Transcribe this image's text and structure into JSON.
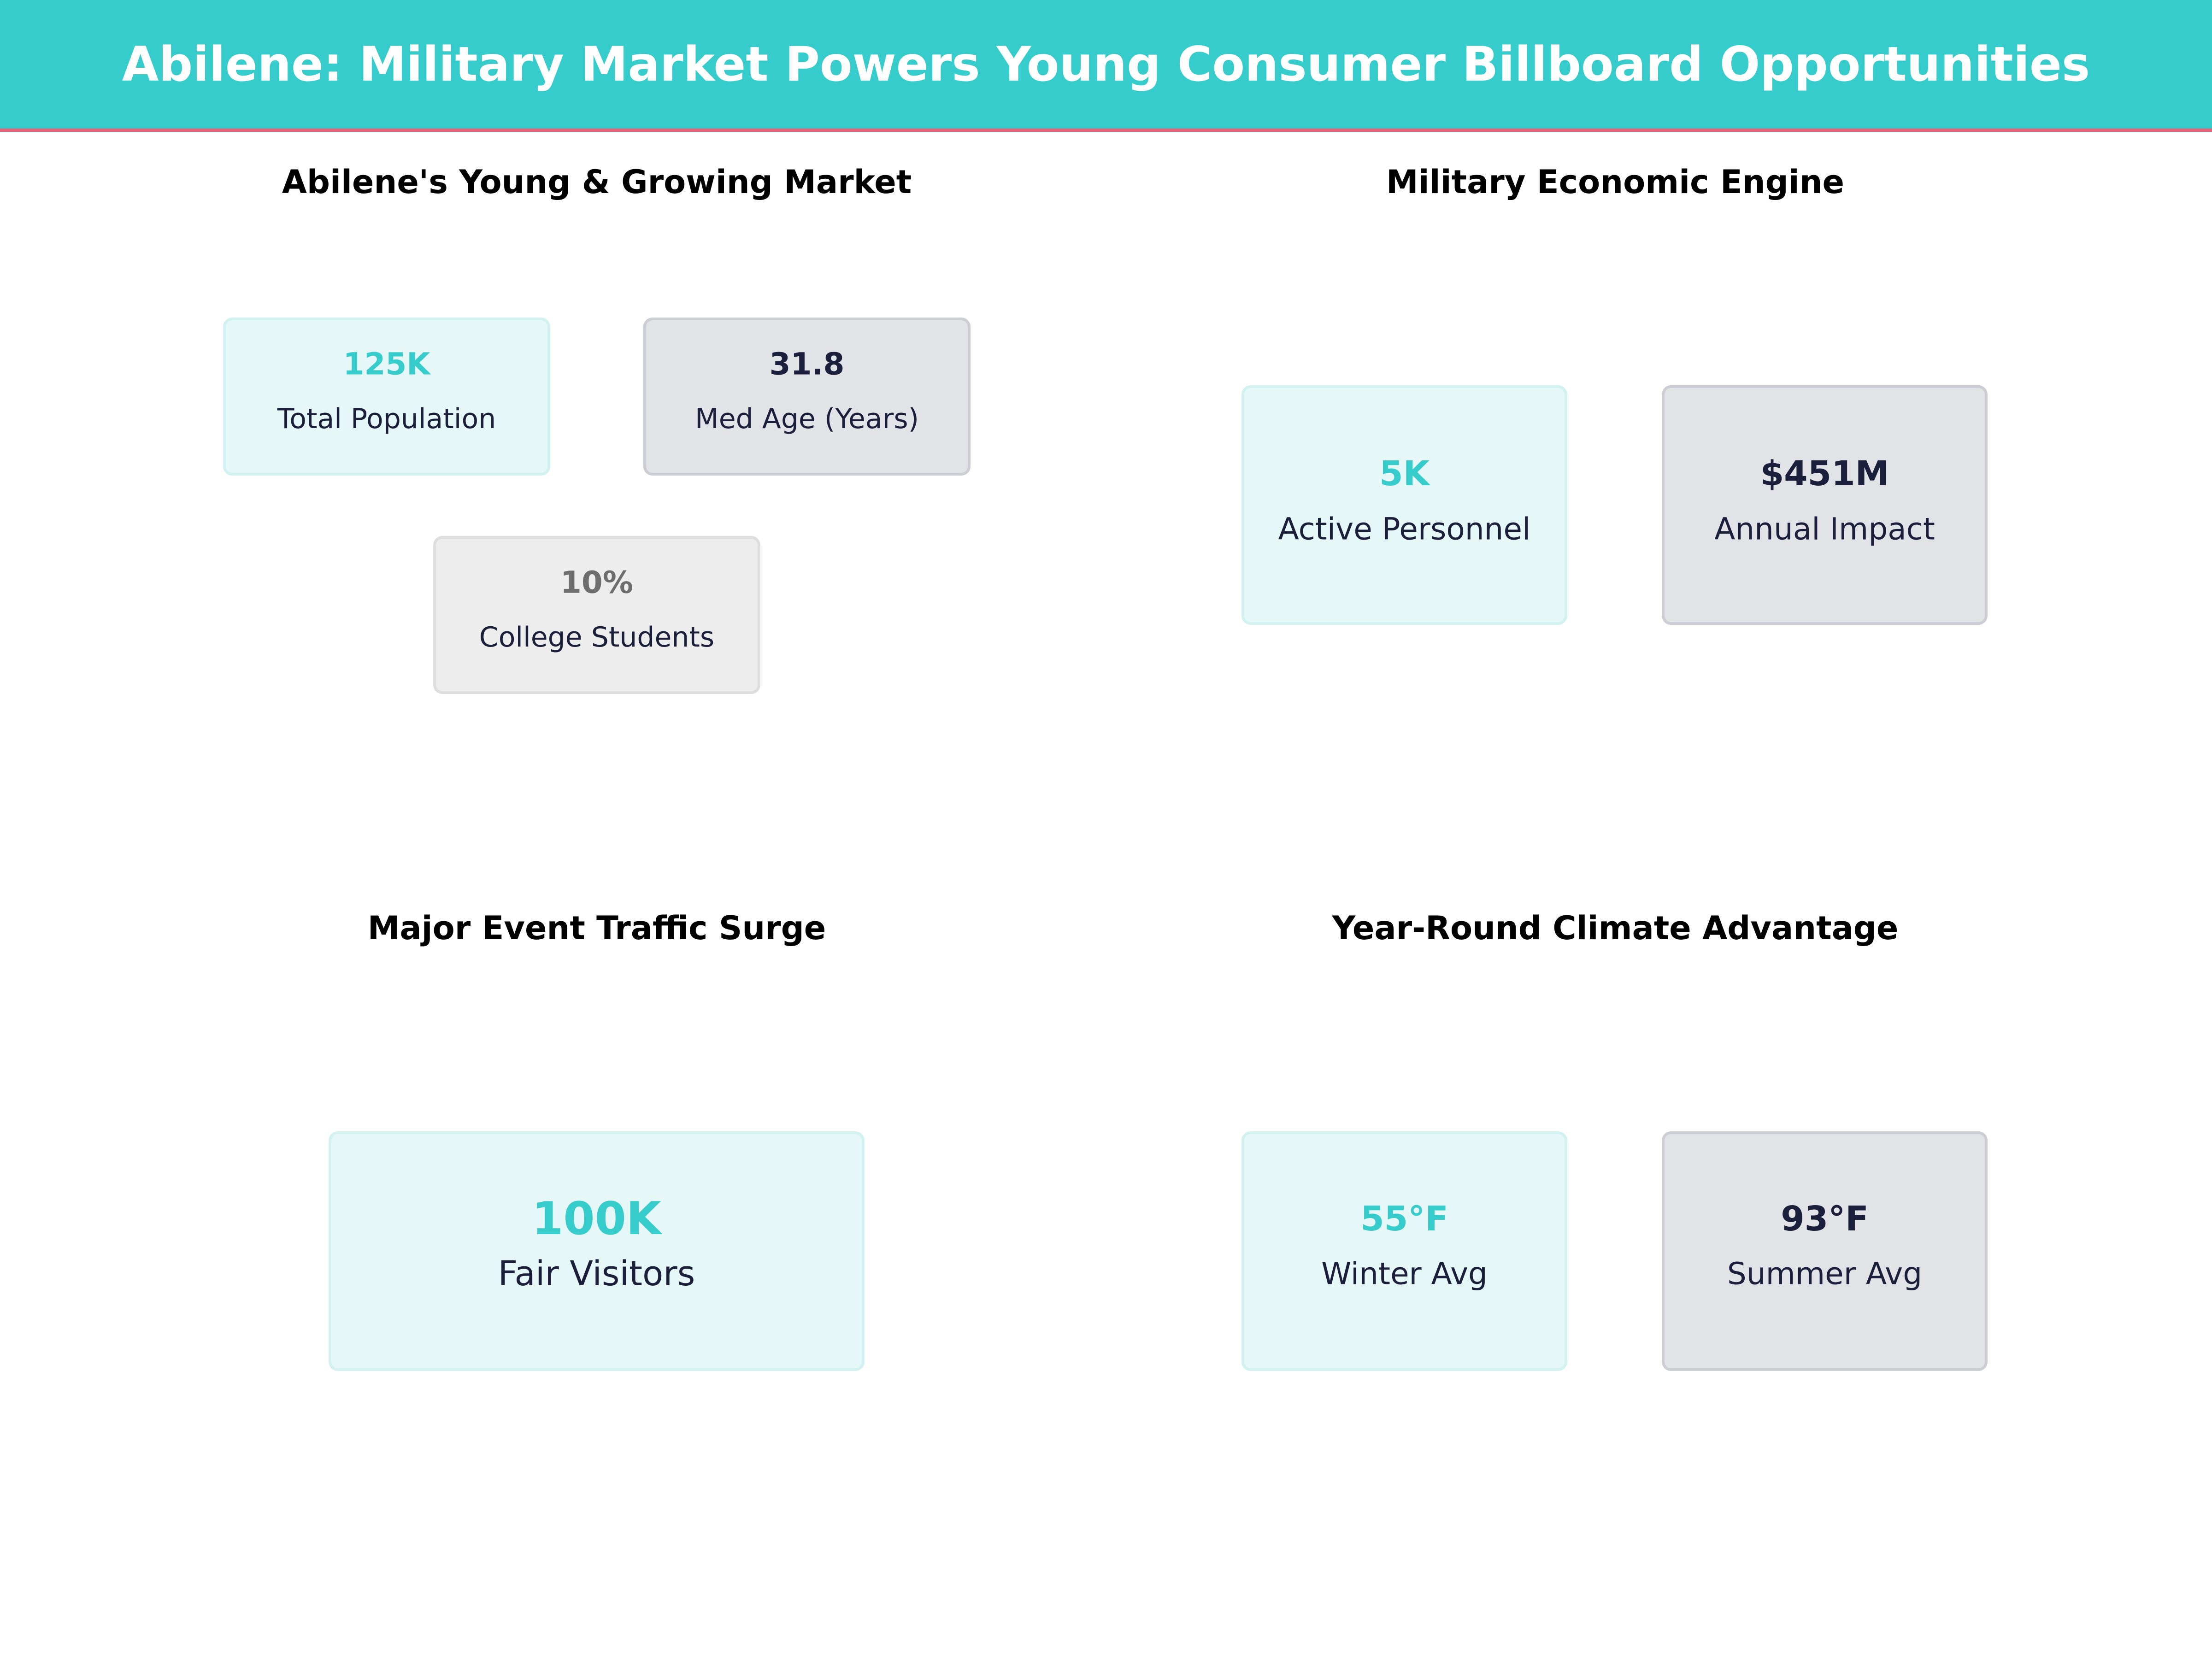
{
  "header": {
    "title": "Abilene: Military Market Powers Young Consumer Billboard Opportunities"
  },
  "colors": {
    "accent": "#36CCCC",
    "header_underline": "#E8607A",
    "dark": "#1B1F3B",
    "muted": "#6E6E6E"
  },
  "panels": [
    {
      "title": "Abilene's Young & Growing Market",
      "cards": [
        {
          "value": "125K",
          "label": "Total Population"
        },
        {
          "value": "31.8",
          "label": "Med Age (Years)"
        },
        {
          "value": "10%",
          "label": "College Students"
        }
      ]
    },
    {
      "title": "Military Economic Engine",
      "cards": [
        {
          "value": "5K",
          "label": "Active Personnel"
        },
        {
          "value": "$451M",
          "label": "Annual Impact"
        }
      ]
    },
    {
      "title": "Major Event Traffic Surge",
      "cards": [
        {
          "value": "100K",
          "label": "Fair Visitors"
        }
      ]
    },
    {
      "title": "Year-Round Climate Advantage",
      "cards": [
        {
          "value": "55°F",
          "label": "Winter Avg"
        },
        {
          "value": "93°F",
          "label": "Summer Avg"
        }
      ]
    }
  ]
}
